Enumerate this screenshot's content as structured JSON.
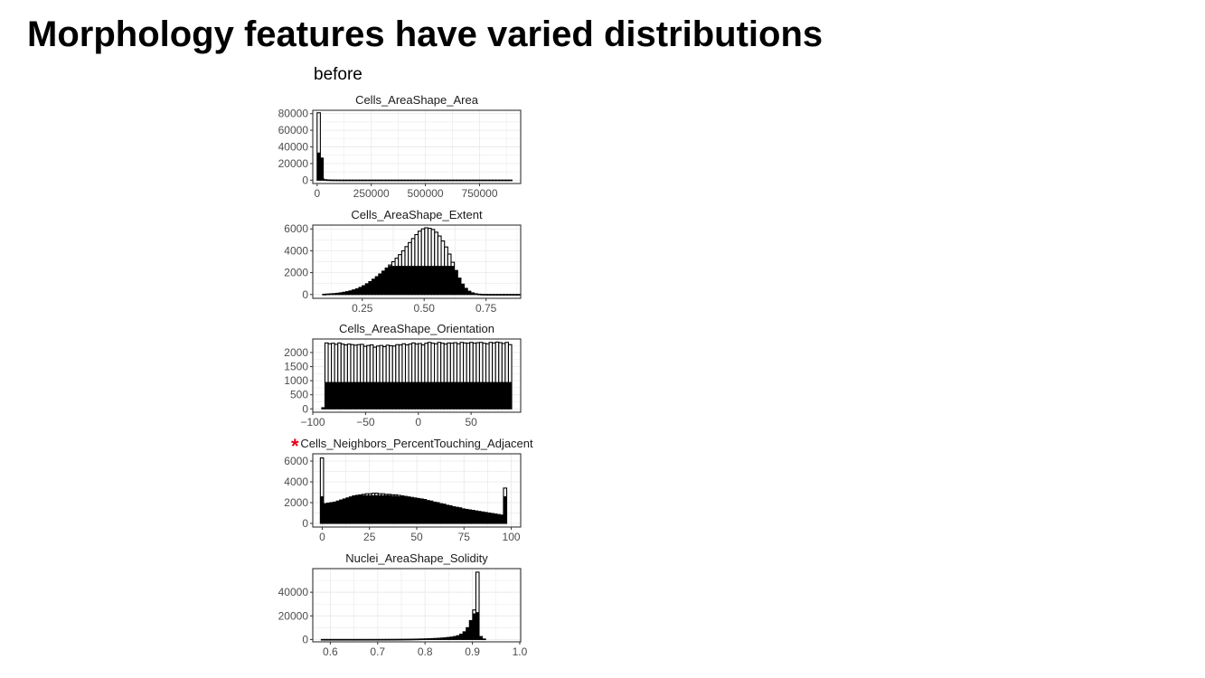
{
  "slide": {
    "title": "Morphology features have varied distributions",
    "section_label": "before",
    "marker": "*"
  },
  "chart_data": [
    {
      "type": "bar",
      "title": "Cells_AreaShape_Area",
      "xlim": [
        -20000,
        940000
      ],
      "ylim": [
        -4000,
        84000
      ],
      "xticks": [
        0,
        250000,
        500000,
        750000
      ],
      "xtick_labels": [
        "0",
        "250000",
        "500000",
        "750000"
      ],
      "yticks": [
        0,
        20000,
        40000,
        60000,
        80000
      ],
      "ytick_labels": [
        "0",
        "20000",
        "40000",
        "60000",
        "80000"
      ],
      "bin_start": 0,
      "bin_width": 15000,
      "series": [
        {
          "values": [
            81000,
            2000,
            600,
            300,
            200,
            150,
            120,
            100,
            100,
            100,
            100,
            100,
            100,
            100,
            100,
            100,
            100,
            100,
            100,
            100,
            100,
            100,
            100,
            100,
            100,
            100,
            100,
            100,
            100,
            100,
            100,
            100,
            100,
            100,
            100,
            100,
            100,
            100,
            100,
            100,
            100,
            100,
            100,
            100,
            100,
            100,
            100,
            100,
            100,
            100,
            100,
            100,
            100,
            100,
            100,
            100,
            100,
            100,
            100,
            100
          ]
        },
        {
          "values": [
            33000,
            27000,
            600,
            300,
            200,
            150,
            120,
            100,
            100,
            100,
            100,
            100,
            100,
            100,
            100,
            100,
            100,
            100,
            100,
            100,
            100,
            100,
            100,
            100,
            100,
            100,
            100,
            100,
            100,
            100,
            100,
            100,
            100,
            100,
            100,
            100,
            100,
            100,
            100,
            100,
            100,
            100,
            100,
            100,
            100,
            100,
            100,
            100,
            100,
            100,
            100,
            100,
            100,
            100,
            100,
            100,
            100,
            100,
            100,
            100
          ]
        }
      ],
      "grid": true
    },
    {
      "type": "bar",
      "title": "Cells_AreaShape_Extent",
      "xlim": [
        0.05,
        0.89
      ],
      "ylim": [
        -350,
        6350
      ],
      "xticks": [
        0.25,
        0.5,
        0.75
      ],
      "xtick_labels": [
        "0.25",
        "0.50",
        "0.75"
      ],
      "yticks": [
        0,
        2000,
        4000,
        6000
      ],
      "ytick_labels": [
        "0",
        "2000",
        "4000",
        "6000"
      ],
      "bin_start": 0.09,
      "bin_width": 0.0133,
      "series": [
        {
          "values": [
            20,
            40,
            60,
            80,
            110,
            150,
            200,
            260,
            330,
            420,
            520,
            650,
            800,
            980,
            1180,
            1400,
            1630,
            1880,
            2140,
            2420,
            2700,
            3000,
            3320,
            3650,
            4000,
            4380,
            4750,
            5120,
            5480,
            5800,
            6000,
            6100,
            6050,
            5950,
            5700,
            5350,
            4900,
            4350,
            3700,
            2950,
            2200,
            1500,
            950,
            560,
            300,
            150,
            70,
            30,
            12,
            6,
            3,
            2,
            1,
            1,
            1,
            1,
            1,
            1,
            1,
            1
          ]
        },
        {
          "values": [
            20,
            40,
            60,
            80,
            110,
            150,
            200,
            260,
            330,
            420,
            520,
            650,
            800,
            980,
            1180,
            1400,
            1630,
            1880,
            2140,
            2420,
            2600,
            2600,
            2600,
            2600,
            2600,
            2600,
            2600,
            2600,
            2600,
            2600,
            2600,
            2600,
            2600,
            2600,
            2600,
            2600,
            2600,
            2600,
            2600,
            2600,
            2200,
            1500,
            950,
            560,
            300,
            150,
            70,
            30,
            12,
            6,
            3,
            2,
            1,
            1,
            1,
            1,
            1,
            1,
            1,
            1
          ]
        }
      ],
      "grid": true
    },
    {
      "type": "bar",
      "title": "Cells_AreaShape_Orientation",
      "xlim": [
        -100,
        97
      ],
      "ylim": [
        -120,
        2480
      ],
      "xticks": [
        -100,
        -50,
        0,
        50
      ],
      "xtick_labels": [
        "−100",
        "−50",
        "0",
        "50"
      ],
      "yticks": [
        0,
        500,
        1000,
        1500,
        2000
      ],
      "ytick_labels": [
        "0",
        "500",
        "1000",
        "1500",
        "2000"
      ],
      "bin_start": -91.5,
      "bin_width": 3.05,
      "series": [
        {
          "values": [
            40,
            2340,
            2310,
            2330,
            2290,
            2340,
            2300,
            2270,
            2300,
            2280,
            2260,
            2280,
            2290,
            2220,
            2250,
            2270,
            2190,
            2230,
            2250,
            2210,
            2260,
            2240,
            2230,
            2280,
            2270,
            2310,
            2270,
            2300,
            2340,
            2300,
            2320,
            2270,
            2330,
            2360,
            2330,
            2310,
            2360,
            2330,
            2300,
            2340,
            2330,
            2350,
            2310,
            2360,
            2340,
            2330,
            2360,
            2330,
            2350,
            2360,
            2330,
            2310,
            2360,
            2340,
            2370,
            2350,
            2320,
            2360,
            2280
          ]
        },
        {
          "values": [
            40,
            950,
            950,
            950,
            950,
            950,
            950,
            950,
            950,
            950,
            950,
            950,
            950,
            950,
            950,
            950,
            950,
            950,
            950,
            950,
            950,
            950,
            950,
            950,
            950,
            950,
            950,
            950,
            950,
            950,
            950,
            950,
            950,
            950,
            950,
            950,
            950,
            950,
            950,
            950,
            950,
            950,
            950,
            950,
            950,
            950,
            950,
            950,
            950,
            950,
            950,
            950,
            950,
            950,
            950,
            950,
            950,
            950,
            950
          ]
        }
      ],
      "grid": true
    },
    {
      "type": "bar",
      "title": "Cells_Neighbors_PercentTouching_Adjacent",
      "xlim": [
        -5,
        105
      ],
      "ylim": [
        -350,
        6700
      ],
      "xticks": [
        0,
        25,
        50,
        75,
        100
      ],
      "xtick_labels": [
        "0",
        "25",
        "50",
        "75",
        "100"
      ],
      "yticks": [
        0,
        2000,
        4000,
        6000
      ],
      "ytick_labels": [
        "0",
        "2000",
        "4000",
        "6000"
      ],
      "bin_start": -1,
      "bin_width": 1.7,
      "series": [
        {
          "values": [
            6300,
            1900,
            1950,
            2000,
            2050,
            2150,
            2250,
            2350,
            2450,
            2550,
            2650,
            2700,
            2750,
            2800,
            2850,
            2850,
            2900,
            2900,
            2850,
            2850,
            2800,
            2800,
            2750,
            2750,
            2700,
            2650,
            2600,
            2550,
            2500,
            2450,
            2400,
            2350,
            2300,
            2200,
            2150,
            2050,
            2000,
            1900,
            1850,
            1750,
            1700,
            1600,
            1550,
            1500,
            1400,
            1350,
            1300,
            1250,
            1200,
            1150,
            1100,
            1050,
            1000,
            950,
            900,
            850,
            800,
            3400,
            0
          ]
        },
        {
          "values": [
            2600,
            1900,
            1950,
            2000,
            2050,
            2150,
            2250,
            2350,
            2450,
            2550,
            2600,
            2650,
            2700,
            2700,
            2700,
            2700,
            2700,
            2700,
            2700,
            2700,
            2700,
            2700,
            2650,
            2650,
            2600,
            2600,
            2550,
            2500,
            2450,
            2400,
            2350,
            2300,
            2250,
            2200,
            2150,
            2050,
            2000,
            1900,
            1850,
            1750,
            1700,
            1600,
            1550,
            1500,
            1400,
            1350,
            1300,
            1250,
            1200,
            1150,
            1100,
            1050,
            1000,
            950,
            900,
            850,
            800,
            2600,
            0
          ]
        }
      ],
      "grid": true
    },
    {
      "type": "bar",
      "title": "Nuclei_AreaShape_Solidity",
      "xlim": [
        0.563,
        1.002
      ],
      "ylim": [
        -2000,
        60000
      ],
      "xticks": [
        0.6,
        0.7,
        0.8,
        0.9,
        1.0
      ],
      "xtick_labels": [
        "0.6",
        "0.7",
        "0.8",
        "0.9",
        "1.0"
      ],
      "yticks": [
        0,
        20000,
        40000
      ],
      "ytick_labels": [
        "0",
        "20000",
        "40000"
      ],
      "bin_start": 0.581,
      "bin_width": 0.0068,
      "series": [
        {
          "values": [
            5,
            5,
            5,
            5,
            5,
            5,
            5,
            5,
            5,
            5,
            5,
            8,
            10,
            12,
            15,
            20,
            25,
            30,
            40,
            50,
            60,
            70,
            80,
            100,
            120,
            140,
            170,
            200,
            240,
            290,
            350,
            420,
            500,
            600,
            720,
            860,
            1000,
            1200,
            1400,
            1700,
            2000,
            2500,
            3200,
            4500,
            6500,
            10000,
            16000,
            25000,
            57000,
            2500,
            400,
            0,
            0,
            0,
            0,
            0,
            0,
            0,
            0
          ]
        },
        {
          "values": [
            5,
            5,
            5,
            5,
            5,
            5,
            5,
            5,
            5,
            5,
            5,
            8,
            10,
            12,
            15,
            20,
            25,
            30,
            40,
            50,
            60,
            70,
            80,
            100,
            120,
            140,
            170,
            200,
            240,
            290,
            350,
            420,
            500,
            600,
            720,
            860,
            1000,
            1200,
            1400,
            1700,
            2000,
            2500,
            3200,
            4500,
            6500,
            10000,
            16000,
            22000,
            23000,
            2500,
            400,
            0,
            0,
            0,
            0,
            0,
            0,
            0,
            0
          ]
        }
      ],
      "grid": true
    }
  ]
}
